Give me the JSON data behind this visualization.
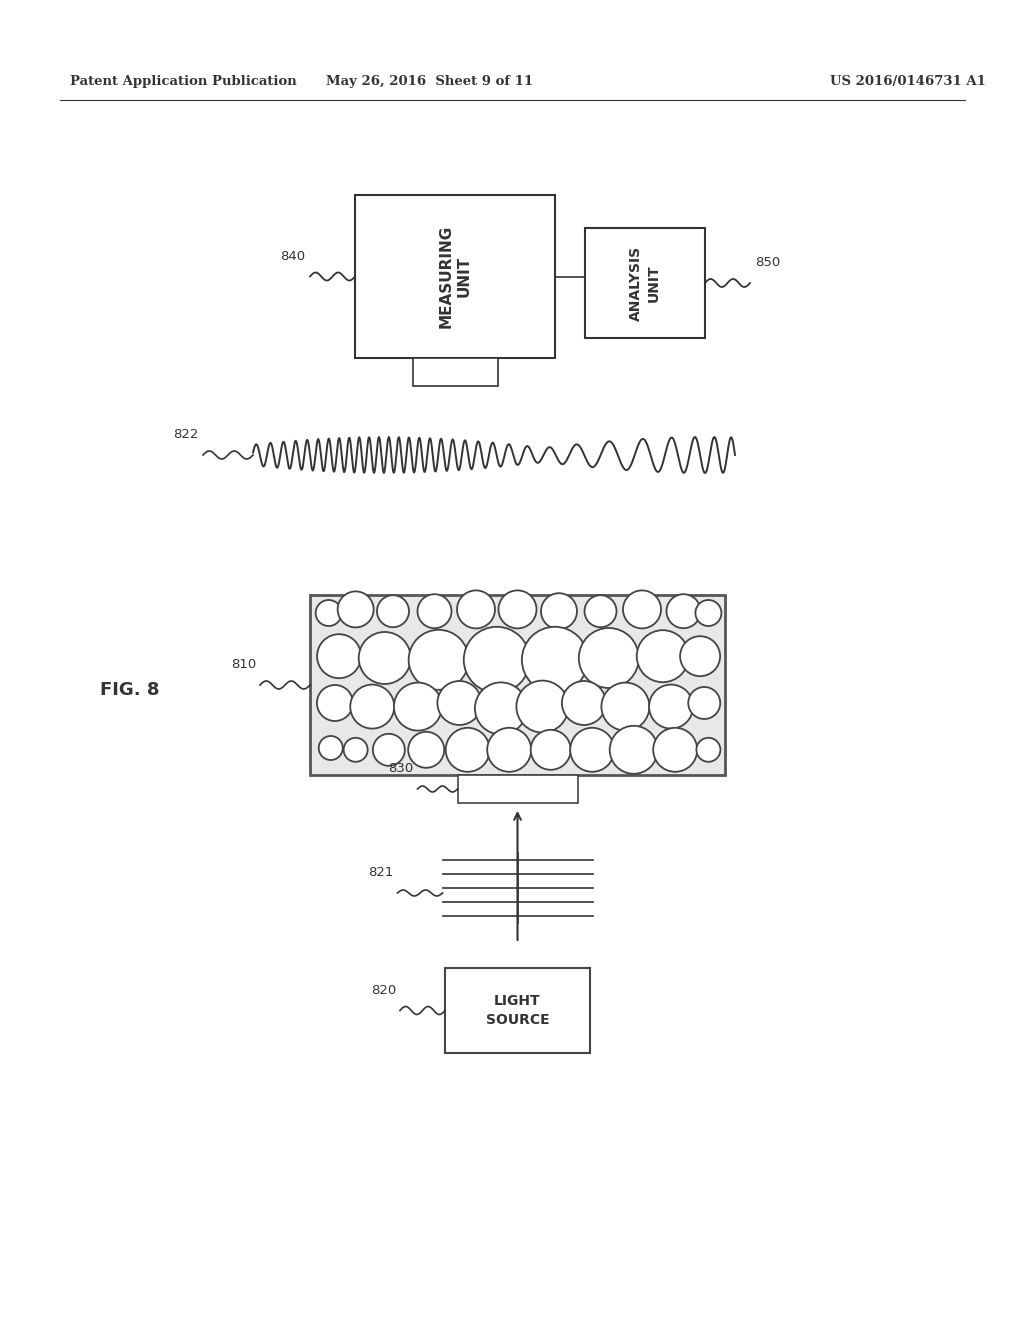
{
  "bg_color": "#ffffff",
  "header_left": "Patent Application Publication",
  "header_mid": "May 26, 2016  Sheet 9 of 11",
  "header_right": "US 2016/0146731 A1",
  "fig_label": "FIG. 8",
  "measuring_unit_label": "MEASURING\nUNIT",
  "analysis_unit_label": "ANALYSIS\nUNIT",
  "label_840": "840",
  "label_850": "850",
  "label_822": "822",
  "label_810": "810",
  "label_830": "830",
  "label_821": "821",
  "label_820": "820",
  "light_source_label": "LIGHT\nSOURCE",
  "line_color": "#333333",
  "text_color": "#333333",
  "box_edge_color": "#444444"
}
